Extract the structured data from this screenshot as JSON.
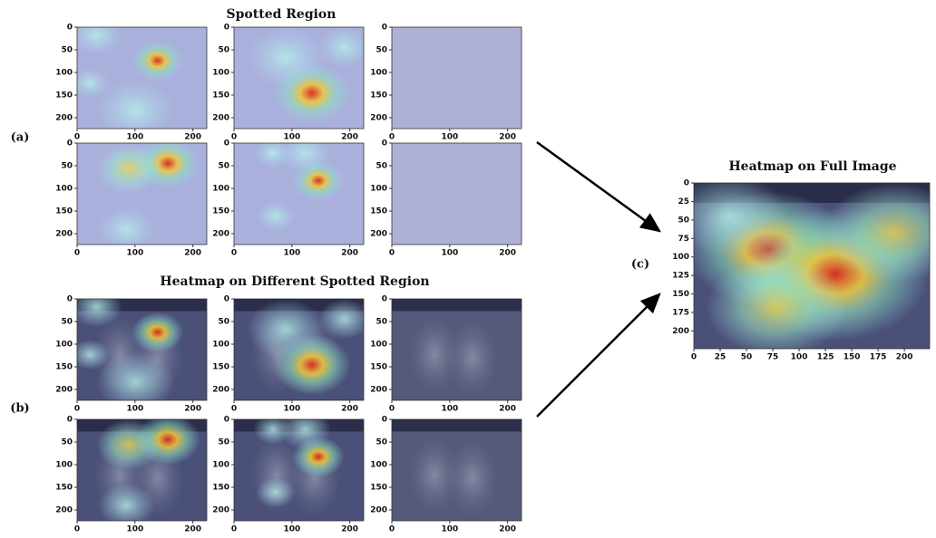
{
  "panel_a": {
    "label": "(a)",
    "title": "Spotted Region"
  },
  "panel_b": {
    "label": "(b)",
    "title": "Heatmap on Different Spotted Region"
  },
  "panel_c": {
    "label": "(c)",
    "title": "Heatmap on Full Image"
  },
  "small_axes": {
    "xlim": [
      0,
      224
    ],
    "ylim": [
      0,
      224
    ],
    "xticks": [
      0,
      100,
      200
    ],
    "yticks": [
      0,
      50,
      100,
      150,
      200
    ]
  },
  "full_axes": {
    "xlim": [
      0,
      224
    ],
    "ylim": [
      0,
      224
    ],
    "xticks": [
      0,
      25,
      50,
      75,
      100,
      125,
      150,
      175,
      200
    ],
    "yticks": [
      0,
      25,
      50,
      75,
      100,
      125,
      150,
      175,
      200
    ]
  }
}
